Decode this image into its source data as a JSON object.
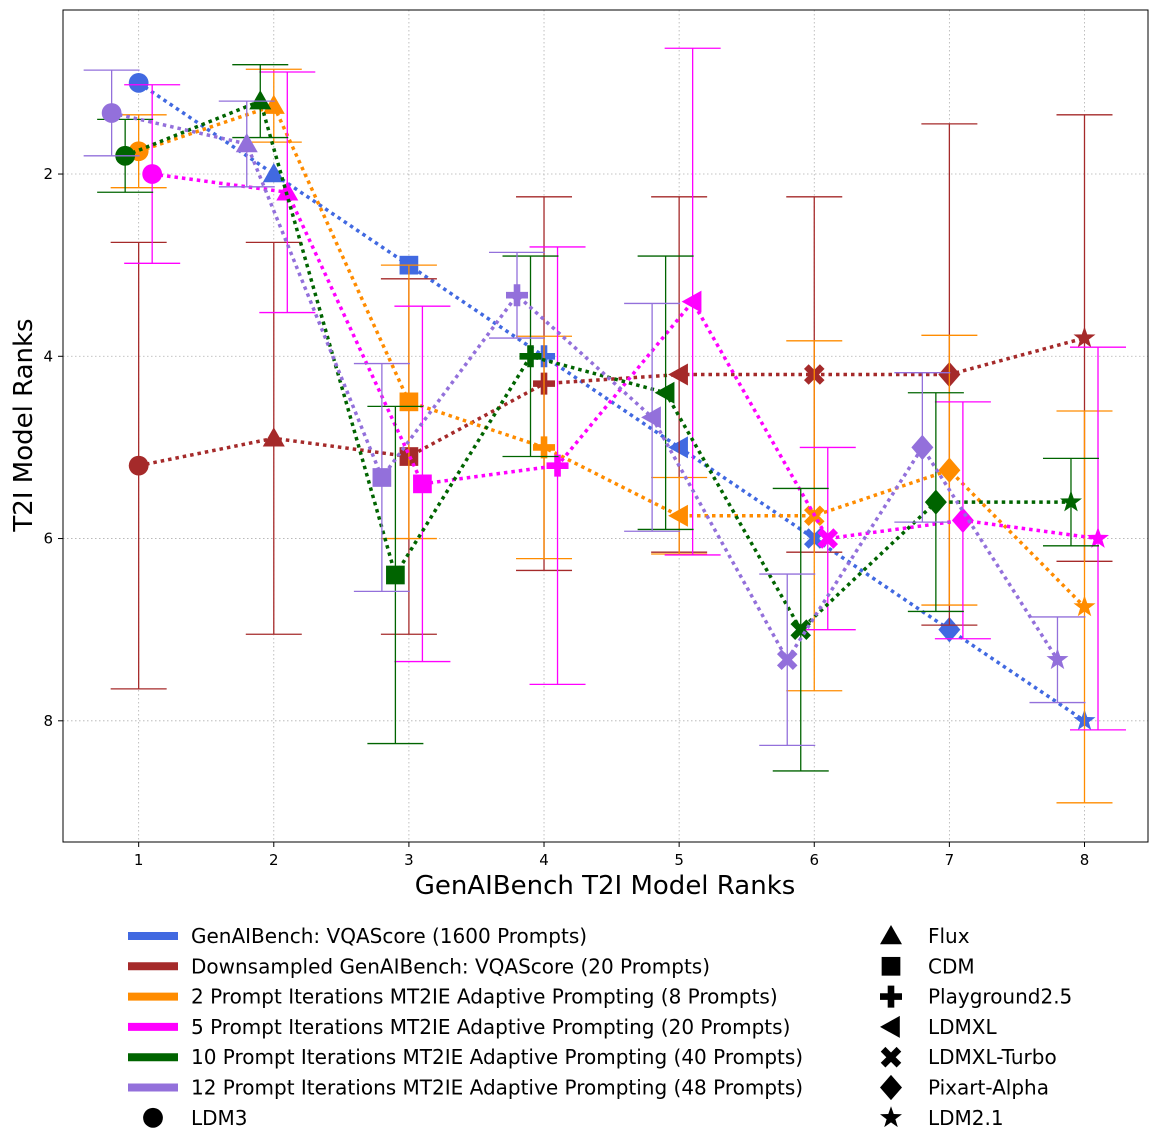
{
  "chart_data": {
    "type": "scatter",
    "xlabel": "GenAIBench T2I Model Ranks",
    "ylabel": "T2I Model Ranks",
    "x_ticks": [
      "1",
      "2",
      "3",
      "4",
      "5",
      "6",
      "7",
      "8"
    ],
    "y_ticks": [
      "2",
      "4",
      "6",
      "8"
    ],
    "xlim": [
      0.44,
      8.47
    ],
    "ylim_inverted": [
      0.2,
      9.33
    ],
    "grid": true,
    "legend_position": "bottom",
    "models": [
      "LDM3",
      "Flux",
      "CDM",
      "Playground2.5",
      "LDMXL",
      "LDMXL-Turbo",
      "Pixart-Alpha",
      "LDM2.1"
    ],
    "marker_legend": [
      {
        "label": "LDM3",
        "marker": "circle"
      },
      {
        "label": "Flux",
        "marker": "triangle-up"
      },
      {
        "label": "CDM",
        "marker": "square"
      },
      {
        "label": "Playground2.5",
        "marker": "plus"
      },
      {
        "label": "LDMXL",
        "marker": "triangle-left"
      },
      {
        "label": "LDMXL-Turbo",
        "marker": "x"
      },
      {
        "label": "Pixart-Alpha",
        "marker": "diamond"
      },
      {
        "label": "LDM2.1",
        "marker": "star"
      }
    ],
    "series": [
      {
        "name": "GenAIBench: VQAScore (1600 Prompts)",
        "color": "#4169E1",
        "offset": 0,
        "ranks": [
          1,
          2,
          3,
          4,
          5,
          6,
          7,
          8
        ],
        "error": [
          0,
          0,
          0,
          0,
          0,
          0,
          0,
          0
        ]
      },
      {
        "name": "Downsampled GenAIBench: VQAScore (20 Prompts)",
        "color": "#A52A2A",
        "offset": 0,
        "ranks": [
          5.2,
          4.9,
          5.1,
          4.3,
          4.2,
          4.2,
          4.2,
          3.8
        ],
        "error": [
          2.45,
          2.15,
          1.95,
          2.05,
          1.95,
          1.95,
          2.75,
          2.45
        ]
      },
      {
        "name": "2 Prompt Iterations MT2IE Adaptive Prompting (8 Prompts)",
        "color": "#FF8C00",
        "offset": 0,
        "ranks": [
          1.75,
          1.25,
          4.5,
          5.0,
          5.75,
          5.75,
          5.25,
          6.75
        ],
        "error": [
          0.4,
          0.4,
          1.5,
          1.22,
          0.42,
          1.92,
          1.48,
          2.15
        ]
      },
      {
        "name": "5 Prompt Iterations MT2IE Adaptive Prompting (20 Prompts)",
        "color": "#FF00FF",
        "offset": 0.1,
        "ranks": [
          2.0,
          2.2,
          5.4,
          5.2,
          3.4,
          6.0,
          5.8,
          6.0
        ],
        "error": [
          0.98,
          1.32,
          1.95,
          2.4,
          2.78,
          1.0,
          1.3,
          2.1
        ]
      },
      {
        "name": "10 Prompt Iterations MT2IE Adaptive Prompting (40 Prompts)",
        "color": "#006400",
        "offset": -0.1,
        "ranks": [
          1.8,
          1.2,
          6.4,
          4.0,
          4.4,
          7.0,
          5.6,
          5.6
        ],
        "error": [
          0.4,
          0.4,
          1.85,
          1.1,
          1.5,
          1.55,
          1.2,
          0.48
        ]
      },
      {
        "name": "12 Prompt Iterations MT2IE Adaptive Prompting (48 Prompts)",
        "color": "#9370DB",
        "offset": -0.2,
        "ranks": [
          1.33,
          1.67,
          5.33,
          3.33,
          4.67,
          7.33,
          5.0,
          7.33
        ],
        "error": [
          0.47,
          0.47,
          1.25,
          0.47,
          1.25,
          0.94,
          0.82,
          0.47
        ]
      }
    ]
  }
}
